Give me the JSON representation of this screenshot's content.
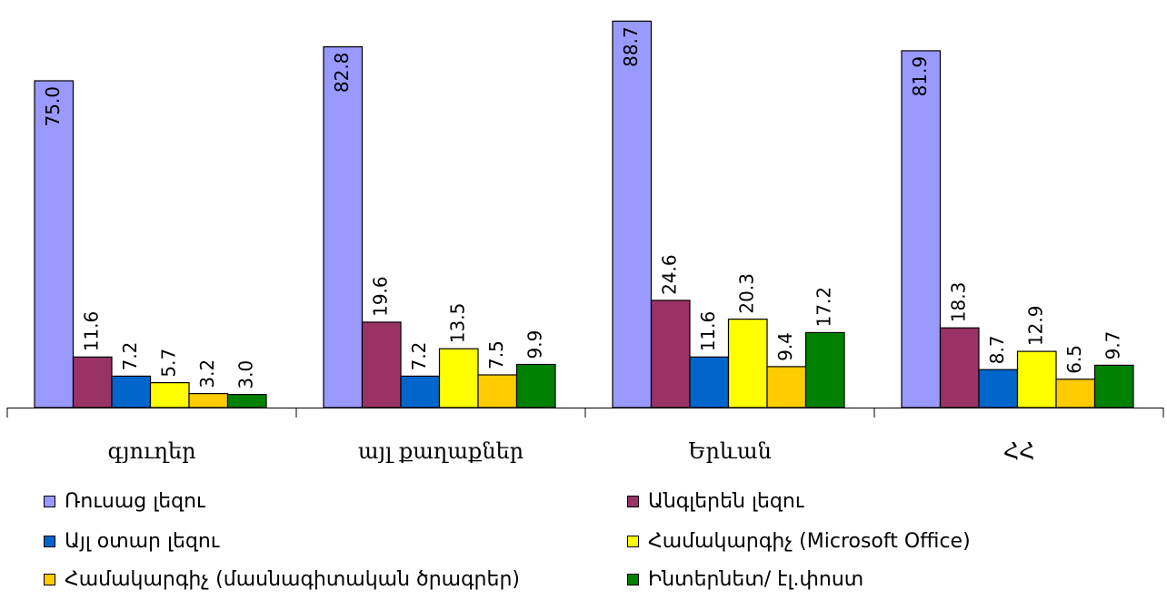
{
  "chart_data": {
    "type": "bar",
    "title": "",
    "xlabel": "",
    "ylabel": "",
    "ylim": [
      0,
      90
    ],
    "grid": false,
    "legend_position": "bottom",
    "categories": [
      "գյուղեր",
      "այլ քաղաքներ",
      "Երևան",
      "ՀՀ"
    ],
    "series": [
      {
        "name": "Ռուսաց լեզու",
        "color": "#9999ff",
        "values": [
          75.0,
          82.8,
          88.7,
          81.9
        ],
        "labels": [
          "75.0",
          "82.8",
          "88.7",
          "81.9"
        ]
      },
      {
        "name": "Անգլերեն լեզու",
        "color": "#993366",
        "values": [
          11.6,
          19.6,
          24.6,
          18.3
        ],
        "labels": [
          "11.6",
          "19.6",
          "24.6",
          "18.3"
        ]
      },
      {
        "name": "Այլ օտար լեզու",
        "color": "#0066cc",
        "values": [
          7.2,
          7.2,
          11.6,
          8.7
        ],
        "labels": [
          "7.2",
          "7.2",
          "11.6",
          "8.7"
        ]
      },
      {
        "name": "Համակարգիչ (Microsoft Office)",
        "color": "#ffff00",
        "values": [
          5.7,
          13.5,
          20.3,
          12.9
        ],
        "labels": [
          "5.7",
          "13.5",
          "20.3",
          "12.9"
        ]
      },
      {
        "name": "Համակարգիչ (մասնագիտական ծրագրեր)",
        "color": "#ffcc00",
        "values": [
          3.2,
          7.5,
          9.4,
          6.5
        ],
        "labels": [
          "3.2",
          "7.5",
          "9.4",
          "6.5"
        ]
      },
      {
        "name": "Ինտերնետ/ էլ.փոստ",
        "color": "#008000",
        "values": [
          3.0,
          9.9,
          17.2,
          9.7
        ],
        "labels": [
          "3.0",
          "9.9",
          "17.2",
          "9.7"
        ]
      }
    ]
  }
}
